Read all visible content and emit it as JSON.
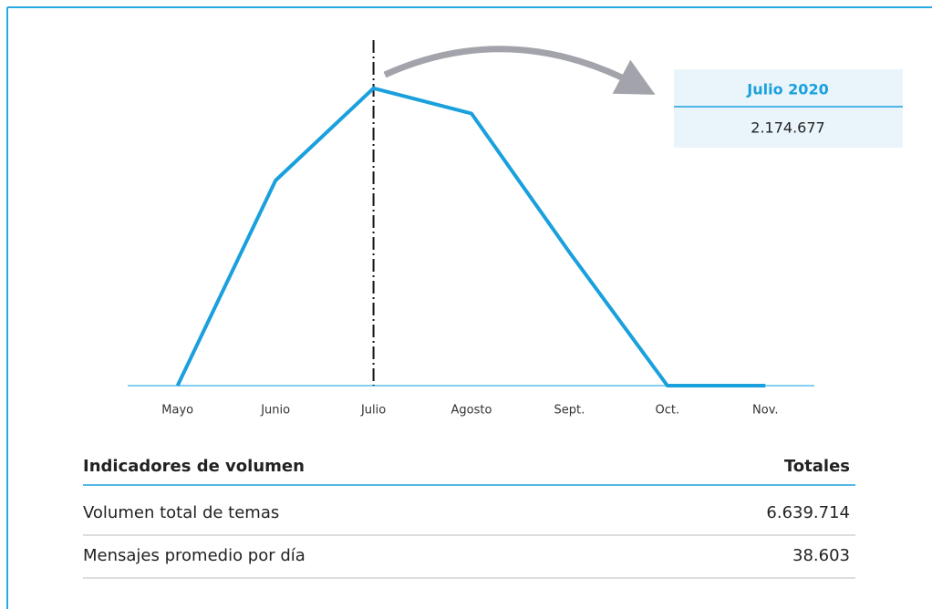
{
  "chart_data": {
    "type": "line",
    "categories": [
      "Mayo",
      "Junio",
      "Julio",
      "Agosto",
      "Sept.",
      "Oct.",
      "Nov."
    ],
    "values": [
      0,
      1500000,
      2174677,
      1990000,
      975037,
      0,
      0
    ],
    "value_labels": [
      null,
      null,
      "2.174.677",
      null,
      null,
      null,
      null
    ],
    "annotation": "Julio 2020",
    "color": "#1aa0dc",
    "ylim": [
      0,
      2400000
    ]
  },
  "table": {
    "headers": [
      "Indicadores de volumen",
      "Totales"
    ],
    "rows": [
      [
        "Volumen total de temas",
        "6.639.714"
      ],
      [
        "Mensajes promedio por día",
        "38.603"
      ]
    ]
  }
}
